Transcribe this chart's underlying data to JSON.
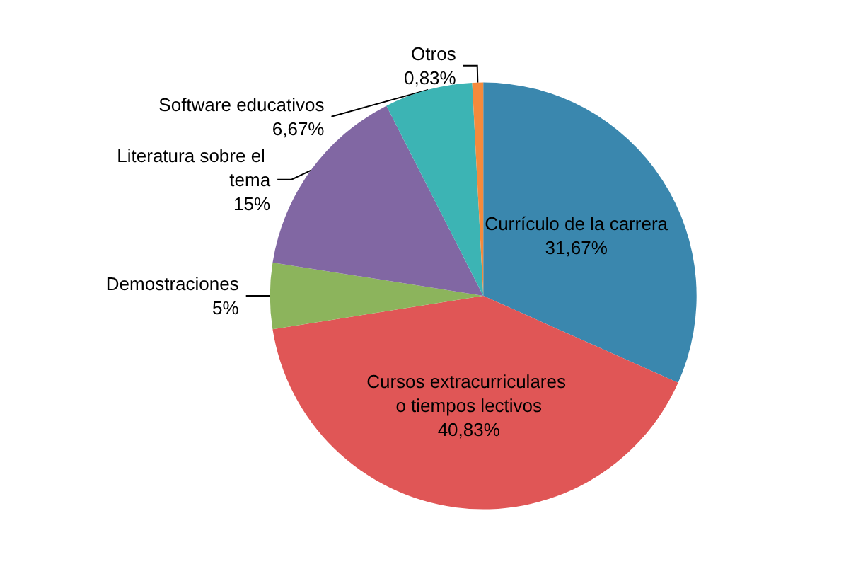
{
  "chart_data": {
    "type": "pie",
    "categories": [
      "Currículo de la carrera",
      "Cursos extracurriculares o tiempos lectivos",
      "Demostraciones",
      "Literatura sobre el tema",
      "Software educativos",
      "Otros"
    ],
    "values": [
      31.67,
      40.83,
      5,
      15,
      6.67,
      0.83
    ],
    "value_labels": [
      "31,67%",
      "40,83%",
      "5%",
      "15%",
      "6,67%",
      "0,83%"
    ],
    "colors": [
      "#3a87ae",
      "#e05656",
      "#8cb45c",
      "#8167a3",
      "#3cb4b4",
      "#f58a3c"
    ],
    "legend": false
  }
}
